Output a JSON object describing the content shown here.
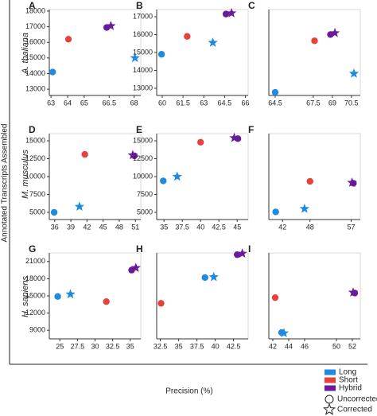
{
  "x_label": "Precision (%)",
  "y_label": "Annotated Transcripts Assembled",
  "row_labels": [
    "A. thaliana",
    "M. musculus",
    "H. sapiens"
  ],
  "legend": {
    "colors": [
      {
        "name": "Long",
        "color": "#1f8ae0"
      },
      {
        "name": "Short",
        "color": "#e8413c"
      },
      {
        "name": "Hybrid",
        "color": "#6a1b9a"
      }
    ],
    "shapes": [
      {
        "name": "Uncorrected",
        "shape": "circle"
      },
      {
        "name": "Corrected",
        "shape": "star"
      }
    ]
  },
  "chart_data": [
    {
      "type": "scatter",
      "title": "A",
      "xlim": [
        62.9,
        68.4
      ],
      "ylim": [
        12600,
        18100
      ],
      "xticks": [
        63,
        64,
        65,
        66.5,
        68
      ],
      "yticks": [
        13000,
        14000,
        15000,
        16000,
        17000,
        18000
      ],
      "series": [
        {
          "name": "Long",
          "color": "#1f8ae0",
          "x": [
            63.1,
            68.05
          ],
          "values": [
            14100,
            15000
          ],
          "shape": [
            "circle",
            "star"
          ]
        },
        {
          "name": "Short",
          "color": "#e8413c",
          "x": [
            64.05
          ],
          "values": [
            16200
          ],
          "shape": [
            "circle"
          ]
        },
        {
          "name": "Hybrid",
          "color": "#6a1b9a",
          "x": [
            66.35,
            66.6
          ],
          "values": [
            16950,
            17050
          ],
          "shape": [
            "circle",
            "star"
          ]
        }
      ]
    },
    {
      "type": "scatter",
      "title": "B",
      "xlim": [
        59.6,
        66.2
      ],
      "ylim": [
        12600,
        17400
      ],
      "xticks": [
        60,
        61.5,
        63,
        64.5,
        66
      ],
      "yticks": [
        13000,
        14000,
        15000,
        16000,
        17000
      ],
      "series": [
        {
          "name": "Long",
          "color": "#1f8ae0",
          "x": [
            59.95,
            63.65
          ],
          "values": [
            14900,
            15550
          ],
          "shape": [
            "circle",
            "star"
          ]
        },
        {
          "name": "Short",
          "color": "#e8413c",
          "x": [
            61.8
          ],
          "values": [
            15900
          ],
          "shape": [
            "circle"
          ]
        },
        {
          "name": "Hybrid",
          "color": "#6a1b9a",
          "x": [
            64.6,
            65
          ],
          "values": [
            17150,
            17200
          ],
          "shape": [
            "circle",
            "star"
          ]
        }
      ]
    },
    {
      "type": "scatter",
      "title": "C",
      "xlim": [
        64,
        71.2
      ],
      "ylim": [
        12600,
        18100
      ],
      "xticks": [
        64.5,
        67.5,
        69,
        70.5
      ],
      "series": [
        {
          "name": "Long",
          "color": "#1f8ae0",
          "x": [
            64.5,
            70.7
          ],
          "values": [
            12800,
            14000
          ],
          "shape": [
            "circle",
            "star"
          ]
        },
        {
          "name": "Short",
          "color": "#e8413c",
          "x": [
            67.6
          ],
          "values": [
            16100
          ],
          "shape": [
            "circle"
          ]
        },
        {
          "name": "Hybrid",
          "color": "#6a1b9a",
          "x": [
            68.85,
            69.2
          ],
          "values": [
            16500,
            16600
          ],
          "shape": [
            "circle",
            "star"
          ]
        }
      ]
    },
    {
      "type": "scatter",
      "title": "D",
      "xlim": [
        35,
        52
      ],
      "ylim": [
        4000,
        16000
      ],
      "xticks": [
        36,
        39,
        42,
        45,
        48,
        51
      ],
      "yticks": [
        5000,
        7500,
        10000,
        12500,
        15000
      ],
      "series": [
        {
          "name": "Long",
          "color": "#1f8ae0",
          "x": [
            35.9,
            40.6
          ],
          "values": [
            5000,
            5800
          ],
          "shape": [
            "circle",
            "star"
          ]
        },
        {
          "name": "Short",
          "color": "#e8413c",
          "x": [
            41.6
          ],
          "values": [
            13100
          ],
          "shape": [
            "circle"
          ]
        },
        {
          "name": "Hybrid",
          "color": "#6a1b9a",
          "x": [
            50.8,
            50.5
          ],
          "values": [
            12900,
            13000
          ],
          "shape": [
            "circle",
            "star"
          ]
        }
      ]
    },
    {
      "type": "scatter",
      "title": "E",
      "xlim": [
        34,
        46.5
      ],
      "ylim": [
        4000,
        16000
      ],
      "xticks": [
        35,
        37.5,
        40,
        42.5,
        45
      ],
      "yticks": [
        5000,
        7500,
        10000,
        12500,
        15000
      ],
      "series": [
        {
          "name": "Long",
          "color": "#1f8ae0",
          "x": [
            34.9,
            36.8
          ],
          "values": [
            9400,
            10000
          ],
          "shape": [
            "circle",
            "star"
          ]
        },
        {
          "name": "Short",
          "color": "#e8413c",
          "x": [
            40
          ],
          "values": [
            14800
          ],
          "shape": [
            "circle"
          ]
        },
        {
          "name": "Hybrid",
          "color": "#6a1b9a",
          "x": [
            45.1,
            44.6
          ],
          "values": [
            15300,
            15400
          ],
          "shape": [
            "circle",
            "star"
          ]
        }
      ]
    },
    {
      "type": "scatter",
      "title": "F",
      "xlim": [
        39,
        59
      ],
      "ylim": [
        2500,
        16000
      ],
      "xticks": [
        42,
        48,
        57
      ],
      "series": [
        {
          "name": "Long",
          "color": "#1f8ae0",
          "x": [
            40.5,
            46.8
          ],
          "values": [
            3700,
            4200
          ],
          "shape": [
            "circle",
            "star"
          ]
        },
        {
          "name": "Short",
          "color": "#e8413c",
          "x": [
            48
          ],
          "values": [
            8500
          ],
          "shape": [
            "circle"
          ]
        },
        {
          "name": "Hybrid",
          "color": "#6a1b9a",
          "x": [
            57.5,
            57.2
          ],
          "values": [
            8200,
            8300
          ],
          "shape": [
            "circle",
            "star"
          ]
        }
      ]
    },
    {
      "type": "scatter",
      "title": "G",
      "xlim": [
        23.5,
        36.5
      ],
      "ylim": [
        7500,
        22500
      ],
      "xticks": [
        25,
        27.5,
        30,
        32.5,
        35
      ],
      "yticks": [
        9000,
        12000,
        15000,
        18000,
        21000
      ],
      "series": [
        {
          "name": "Long",
          "color": "#1f8ae0",
          "x": [
            24.7,
            26.5
          ],
          "values": [
            14900,
            15300
          ],
          "shape": [
            "circle",
            "star"
          ]
        },
        {
          "name": "Short",
          "color": "#e8413c",
          "x": [
            31.6
          ],
          "values": [
            14000
          ],
          "shape": [
            "circle"
          ]
        },
        {
          "name": "Hybrid",
          "color": "#6a1b9a",
          "x": [
            35.2,
            35.8
          ],
          "values": [
            19500,
            19900
          ],
          "shape": [
            "circle",
            "star"
          ]
        }
      ]
    },
    {
      "type": "scatter",
      "title": "H",
      "xlim": [
        32,
        44.5
      ],
      "ylim": [
        7500,
        22500
      ],
      "xticks": [
        32.5,
        35,
        37.5,
        40,
        42.5
      ],
      "series": [
        {
          "name": "Long",
          "color": "#1f8ae0",
          "x": [
            38.6,
            39.8
          ],
          "values": [
            18200,
            18300
          ],
          "shape": [
            "circle",
            "star"
          ]
        },
        {
          "name": "Short",
          "color": "#e8413c",
          "x": [
            32.6
          ],
          "values": [
            13700
          ],
          "shape": [
            "circle"
          ]
        },
        {
          "name": "Hybrid",
          "color": "#6a1b9a",
          "x": [
            43,
            43.7
          ],
          "values": [
            22200,
            22400
          ],
          "shape": [
            "circle",
            "star"
          ]
        }
      ]
    },
    {
      "type": "scatter",
      "title": "I",
      "xlim": [
        41.5,
        53
      ],
      "ylim": [
        7500,
        22500
      ],
      "xticks": [
        42,
        44,
        46,
        50,
        52
      ],
      "series": [
        {
          "name": "Long",
          "color": "#1f8ae0",
          "x": [
            43.1,
            43.4
          ],
          "values": [
            8600,
            8500
          ],
          "shape": [
            "circle",
            "star"
          ]
        },
        {
          "name": "Short",
          "color": "#e8413c",
          "x": [
            42.3
          ],
          "values": [
            14700
          ],
          "shape": [
            "circle"
          ]
        },
        {
          "name": "Hybrid",
          "color": "#6a1b9a",
          "x": [
            52.3,
            52.1
          ],
          "values": [
            15500,
            15600
          ],
          "shape": [
            "circle",
            "star"
          ]
        }
      ]
    }
  ]
}
